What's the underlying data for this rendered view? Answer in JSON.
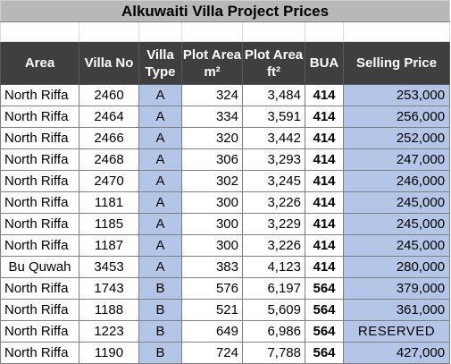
{
  "title": "Alkuwaiti Villa Project Prices",
  "headers": {
    "area": "Area",
    "villa_no": "Villa No",
    "villa_type": "Villa Type",
    "plot_m2": "Plot Area m²",
    "plot_ft2": "Plot Area ft²",
    "bua": "BUA",
    "price": "Selling Price"
  },
  "rows": [
    {
      "area": "North Riffa",
      "villa_no": "2460",
      "type": "A",
      "plot_m2": "324",
      "plot_ft2": "3,484",
      "bua": "414",
      "price": "253,000"
    },
    {
      "area": "North Riffa",
      "villa_no": "2464",
      "type": "A",
      "plot_m2": "334",
      "plot_ft2": "3,591",
      "bua": "414",
      "price": "256,000"
    },
    {
      "area": "North Riffa",
      "villa_no": "2466",
      "type": "A",
      "plot_m2": "320",
      "plot_ft2": "3,442",
      "bua": "414",
      "price": "252,000"
    },
    {
      "area": "North Riffa",
      "villa_no": "2468",
      "type": "A",
      "plot_m2": "306",
      "plot_ft2": "3,293",
      "bua": "414",
      "price": "247,000"
    },
    {
      "area": "North Riffa",
      "villa_no": "2470",
      "type": "A",
      "plot_m2": "302",
      "plot_ft2": "3,245",
      "bua": "414",
      "price": "246,000"
    },
    {
      "area": "North Riffa",
      "villa_no": "1181",
      "type": "A",
      "plot_m2": "300",
      "plot_ft2": "3,226",
      "bua": "414",
      "price": "245,000"
    },
    {
      "area": "North Riffa",
      "villa_no": "1185",
      "type": "A",
      "plot_m2": "300",
      "plot_ft2": "3,229",
      "bua": "414",
      "price": "245,000"
    },
    {
      "area": "North Riffa",
      "villa_no": "1187",
      "type": "A",
      "plot_m2": "300",
      "plot_ft2": "3,226",
      "bua": "414",
      "price": "245,000"
    },
    {
      "area": "Bu Quwah",
      "villa_no": "3453",
      "type": "A",
      "plot_m2": "383",
      "plot_ft2": "4,123",
      "bua": "414",
      "price": "280,000"
    },
    {
      "area": "North Riffa",
      "villa_no": "1743",
      "type": "B",
      "plot_m2": "576",
      "plot_ft2": "6,197",
      "bua": "564",
      "price": "379,000"
    },
    {
      "area": "North Riffa",
      "villa_no": "1188",
      "type": "B",
      "plot_m2": "521",
      "plot_ft2": "5,609",
      "bua": "564",
      "price": "361,000"
    },
    {
      "area": "North Riffa",
      "villa_no": "1223",
      "type": "B",
      "plot_m2": "649",
      "plot_ft2": "6,986",
      "bua": "564",
      "price": "RESERVED"
    },
    {
      "area": "North Riffa",
      "villa_no": "1190",
      "type": "B",
      "plot_m2": "724",
      "plot_ft2": "7,788",
      "bua": "564",
      "price": "427,000"
    }
  ]
}
